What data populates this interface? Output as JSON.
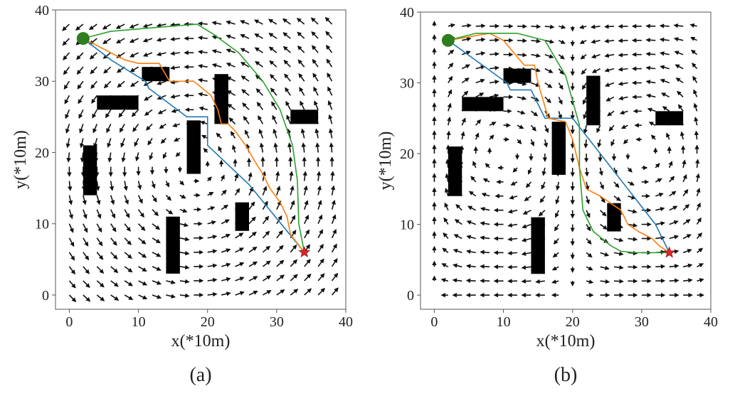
{
  "chart_data": [
    {
      "type": "line",
      "caption": "(a)",
      "xlabel": "x(*10m)",
      "ylabel": "y(*10m)",
      "xlim": [
        -2,
        40
      ],
      "ylim": [
        -2,
        40
      ],
      "xticks": [
        "0",
        "10",
        "20",
        "30",
        "40"
      ],
      "yticks": [
        "0",
        "10",
        "20",
        "30",
        "40"
      ],
      "grid": false,
      "start": {
        "x": 2,
        "y": 36,
        "color": "#2e7d1f"
      },
      "goal": {
        "x": 34,
        "y": 6,
        "color": "#d62728"
      },
      "vector_field": {
        "type": "single-vortex",
        "center": [
          18,
          18
        ]
      },
      "obstacles": [
        {
          "x": [
            2,
            4
          ],
          "y": [
            14,
            21
          ]
        },
        {
          "x": [
            4,
            10
          ],
          "y": [
            26,
            28
          ]
        },
        {
          "x": [
            10.5,
            14.5
          ],
          "y": [
            30,
            32
          ]
        },
        {
          "x": [
            17,
            19
          ],
          "y": [
            17,
            24.5
          ]
        },
        {
          "x": [
            21,
            23
          ],
          "y": [
            24,
            31
          ]
        },
        {
          "x": [
            32,
            36
          ],
          "y": [
            24,
            26
          ]
        },
        {
          "x": [
            24,
            26
          ],
          "y": [
            9,
            13
          ]
        },
        {
          "x": [
            14,
            16
          ],
          "y": [
            3,
            11
          ]
        }
      ],
      "series": [
        {
          "color": "#1f77b4",
          "x": [
            2,
            6,
            11,
            11.5,
            17,
            20,
            20,
            26,
            34
          ],
          "y": [
            36,
            33,
            30,
            29,
            25,
            25,
            21,
            15.5,
            6
          ]
        },
        {
          "color": "#ff7f0e",
          "x": [
            2,
            5,
            8,
            10,
            13,
            14.5,
            18,
            20.5,
            21.5,
            22,
            23,
            24,
            25.5,
            27,
            28,
            29,
            30.5,
            31.5,
            32,
            34
          ],
          "y": [
            36,
            34.5,
            33,
            32.5,
            32.5,
            30,
            30,
            28,
            26,
            24,
            24,
            23,
            21,
            18.5,
            17,
            15,
            13,
            11,
            8.5,
            6
          ]
        },
        {
          "color": "#2ca02c",
          "x": [
            2,
            6,
            12,
            18.5,
            21,
            24.5,
            28,
            30.5,
            32.3,
            33,
            33.2,
            34
          ],
          "y": [
            36,
            37,
            37.5,
            38,
            36.5,
            34,
            30,
            26,
            21,
            16,
            10,
            6
          ]
        }
      ]
    },
    {
      "type": "line",
      "caption": "(b)",
      "xlabel": "x(*10m)",
      "ylabel": "y(*10m)",
      "xlim": [
        -2,
        40
      ],
      "ylim": [
        -2,
        40
      ],
      "xticks": [
        "0",
        "10",
        "20",
        "30",
        "40"
      ],
      "yticks": [
        "0",
        "10",
        "20",
        "30",
        "40"
      ],
      "grid": false,
      "start": {
        "x": 2,
        "y": 36,
        "color": "#2e7d1f"
      },
      "goal": {
        "x": 34,
        "y": 6,
        "color": "#d62728"
      },
      "vector_field": {
        "type": "double-vortex",
        "centers": [
          [
            10,
            20
          ],
          [
            30,
            20
          ]
        ]
      },
      "obstacles": [
        {
          "x": [
            2,
            4
          ],
          "y": [
            14,
            21
          ]
        },
        {
          "x": [
            4,
            10
          ],
          "y": [
            26,
            28
          ]
        },
        {
          "x": [
            10,
            14
          ],
          "y": [
            30,
            32
          ]
        },
        {
          "x": [
            17,
            19
          ],
          "y": [
            17,
            24.5
          ]
        },
        {
          "x": [
            22,
            24
          ],
          "y": [
            24,
            31
          ]
        },
        {
          "x": [
            32,
            36
          ],
          "y": [
            24,
            26
          ]
        },
        {
          "x": [
            25,
            27
          ],
          "y": [
            9,
            13
          ]
        },
        {
          "x": [
            14,
            16
          ],
          "y": [
            3,
            11
          ]
        }
      ],
      "series": [
        {
          "color": "#1f77b4",
          "x": [
            2,
            10.5,
            11,
            14,
            16,
            20,
            24,
            28,
            32,
            34
          ],
          "y": [
            36,
            30,
            29,
            29,
            25,
            25,
            20,
            15,
            10,
            6
          ]
        },
        {
          "color": "#ff7f0e",
          "x": [
            2,
            5,
            8,
            10,
            13,
            14.5,
            15,
            16.5,
            19,
            20,
            21,
            22,
            24,
            25.5,
            27,
            28,
            29.5,
            31.5,
            32.5,
            34
          ],
          "y": [
            36,
            36.5,
            37,
            36,
            32.5,
            32.5,
            30,
            25,
            24.5,
            22,
            18,
            15,
            14,
            13,
            12,
            10,
            9,
            8,
            7,
            6
          ]
        },
        {
          "color": "#2ca02c",
          "x": [
            2,
            6,
            12,
            16,
            19,
            21,
            21,
            21.5,
            23,
            25.5,
            27,
            29,
            31,
            34
          ],
          "y": [
            36,
            37,
            37,
            36,
            31,
            24,
            18,
            12,
            9,
            7,
            6.2,
            6,
            6,
            6
          ]
        }
      ]
    }
  ]
}
